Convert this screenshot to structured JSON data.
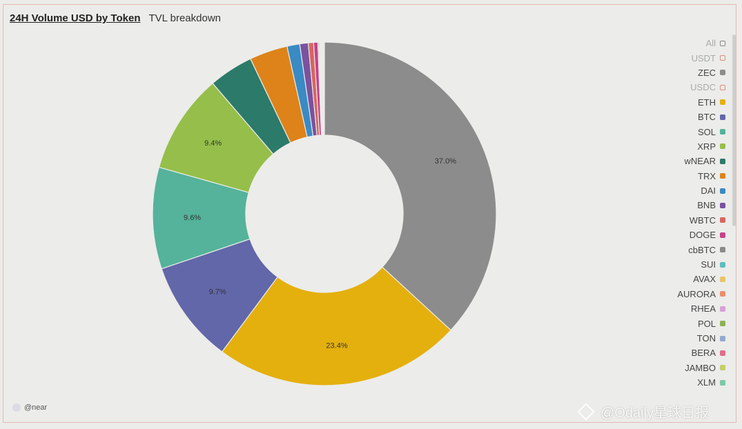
{
  "header": {
    "active_tab": "24H Volume USD by Token",
    "tab_2": "TVL breakdown"
  },
  "chart_data": {
    "type": "pie",
    "variant": "donut",
    "slices": [
      {
        "label": "ZEC",
        "value": 37.0,
        "color": "#8c8c8c",
        "value_label": "37.0%"
      },
      {
        "label": "ETH",
        "value": 23.4,
        "color": "#e4b00e",
        "value_label": "23.4%"
      },
      {
        "label": "BTC",
        "value": 9.7,
        "color": "#6167a8",
        "value_label": "9.7%"
      },
      {
        "label": "SOL",
        "value": 9.6,
        "color": "#54b39a",
        "value_label": "9.6%"
      },
      {
        "label": "XRP",
        "value": 9.4,
        "color": "#95bf4a",
        "value_label": "9.4%"
      },
      {
        "label": "wNEAR",
        "value": 4.2,
        "color": "#2c7a6a",
        "value_label": ""
      },
      {
        "label": "TRX",
        "value": 3.6,
        "color": "#dd8319",
        "value_label": ""
      },
      {
        "label": "DAI",
        "value": 1.2,
        "color": "#3a8ac4",
        "value_label": ""
      },
      {
        "label": "BNB",
        "value": 0.8,
        "color": "#7a52a0",
        "value_label": ""
      },
      {
        "label": "WBTC",
        "value": 0.5,
        "color": "#d8665e",
        "value_label": ""
      },
      {
        "label": "DOGE",
        "value": 0.4,
        "color": "#c6428a",
        "value_label": ""
      },
      {
        "label": "cbBTC",
        "value": 0.1,
        "color": "#8a8a8a",
        "value_label": ""
      },
      {
        "label": "SUI",
        "value": 0.09,
        "color": "#5ebdbf",
        "value_label": ""
      },
      {
        "label": "AVAX",
        "value": 0.08,
        "color": "#e9c46a",
        "value_label": ""
      },
      {
        "label": "AURORA",
        "value": 0.07,
        "color": "#ea8f6b",
        "value_label": ""
      },
      {
        "label": "RHEA",
        "value": 0.06,
        "color": "#d7a2d4",
        "value_label": ""
      },
      {
        "label": "POL",
        "value": 0.05,
        "color": "#8bb356",
        "value_label": ""
      },
      {
        "label": "TON",
        "value": 0.05,
        "color": "#92a9d1",
        "value_label": ""
      },
      {
        "label": "BERA",
        "value": 0.04,
        "color": "#e26d8e",
        "value_label": ""
      },
      {
        "label": "JAMBO",
        "value": 0.04,
        "color": "#c4cf6b",
        "value_label": ""
      },
      {
        "label": "XLM",
        "value": 0.03,
        "color": "#7cc8a8",
        "value_label": ""
      }
    ]
  },
  "legend": {
    "items": [
      {
        "label": "All",
        "color": "#888888",
        "hollow": true,
        "dim": true
      },
      {
        "label": "USDT",
        "color": "#e08a7a",
        "hollow": true,
        "dim": true
      },
      {
        "label": "ZEC",
        "color": "#8c8c8c",
        "hollow": false,
        "dim": false
      },
      {
        "label": "USDC",
        "color": "#e08a7a",
        "hollow": true,
        "dim": true
      },
      {
        "label": "ETH",
        "color": "#e4b00e",
        "hollow": false,
        "dim": false
      },
      {
        "label": "BTC",
        "color": "#6167a8",
        "hollow": false,
        "dim": false
      },
      {
        "label": "SOL",
        "color": "#54b39a",
        "hollow": false,
        "dim": false
      },
      {
        "label": "XRP",
        "color": "#95bf4a",
        "hollow": false,
        "dim": false
      },
      {
        "label": "wNEAR",
        "color": "#2c7a6a",
        "hollow": false,
        "dim": false
      },
      {
        "label": "TRX",
        "color": "#dd8319",
        "hollow": false,
        "dim": false
      },
      {
        "label": "DAI",
        "color": "#3a8ac4",
        "hollow": false,
        "dim": false
      },
      {
        "label": "BNB",
        "color": "#7a52a0",
        "hollow": false,
        "dim": false
      },
      {
        "label": "WBTC",
        "color": "#d8665e",
        "hollow": false,
        "dim": false
      },
      {
        "label": "DOGE",
        "color": "#c6428a",
        "hollow": false,
        "dim": false
      },
      {
        "label": "cbBTC",
        "color": "#8a8a8a",
        "hollow": false,
        "dim": false
      },
      {
        "label": "SUI",
        "color": "#5ebdbf",
        "hollow": false,
        "dim": false
      },
      {
        "label": "AVAX",
        "color": "#e9c46a",
        "hollow": false,
        "dim": false
      },
      {
        "label": "AURORA",
        "color": "#ea8f6b",
        "hollow": false,
        "dim": false
      },
      {
        "label": "RHEA",
        "color": "#d7a2d4",
        "hollow": false,
        "dim": false
      },
      {
        "label": "POL",
        "color": "#8bb356",
        "hollow": false,
        "dim": false
      },
      {
        "label": "TON",
        "color": "#92a9d1",
        "hollow": false,
        "dim": false
      },
      {
        "label": "BERA",
        "color": "#e26d8e",
        "hollow": false,
        "dim": false
      },
      {
        "label": "JAMBO",
        "color": "#c4cf6b",
        "hollow": false,
        "dim": false
      },
      {
        "label": "XLM",
        "color": "#7cc8a8",
        "hollow": false,
        "dim": false
      }
    ]
  },
  "footer": {
    "handle": "@near"
  },
  "watermark": {
    "text": "@Odaily星球日报"
  }
}
